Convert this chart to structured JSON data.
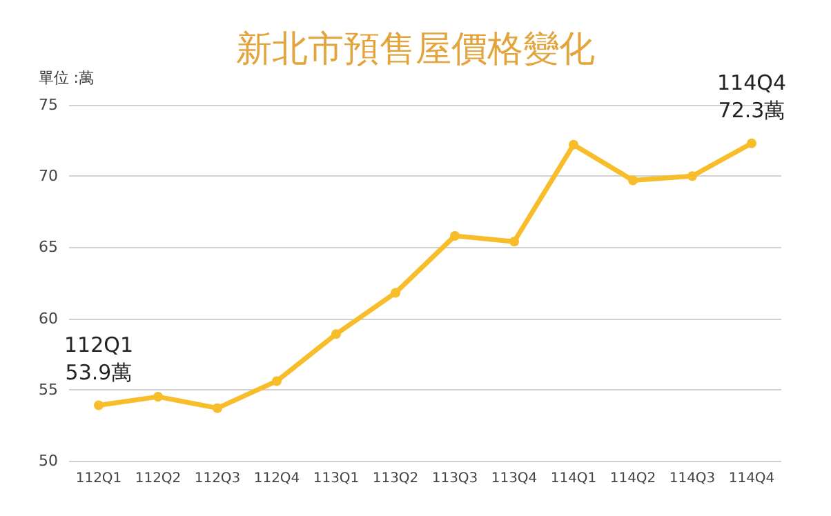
{
  "chart_data": {
    "type": "line",
    "title": "新北市預售屋價格變化",
    "ylabel": "單位 :萬",
    "categories": [
      "112Q1",
      "112Q2",
      "112Q3",
      "112Q4",
      "113Q1",
      "113Q2",
      "113Q3",
      "113Q4",
      "114Q1",
      "114Q2",
      "114Q3",
      "114Q4"
    ],
    "series": [
      {
        "color": "#f7bd2a",
        "values": [
          53.9,
          54.5,
          53.7,
          55.6,
          58.9,
          61.8,
          65.8,
          65.4,
          72.2,
          69.7,
          70.0,
          72.3
        ]
      }
    ],
    "ylim": [
      50,
      75
    ],
    "yticks": [
      50,
      55,
      60,
      65,
      70,
      75
    ],
    "grid": "y",
    "marker": "circle",
    "line_style": "solid",
    "annotations": [
      {
        "text": "112Q1\n53.9萬",
        "x": "112Q1",
        "y": 53.9
      },
      {
        "text": "114Q4\n72.3萬",
        "x": "114Q4",
        "y": 72.3
      }
    ]
  }
}
